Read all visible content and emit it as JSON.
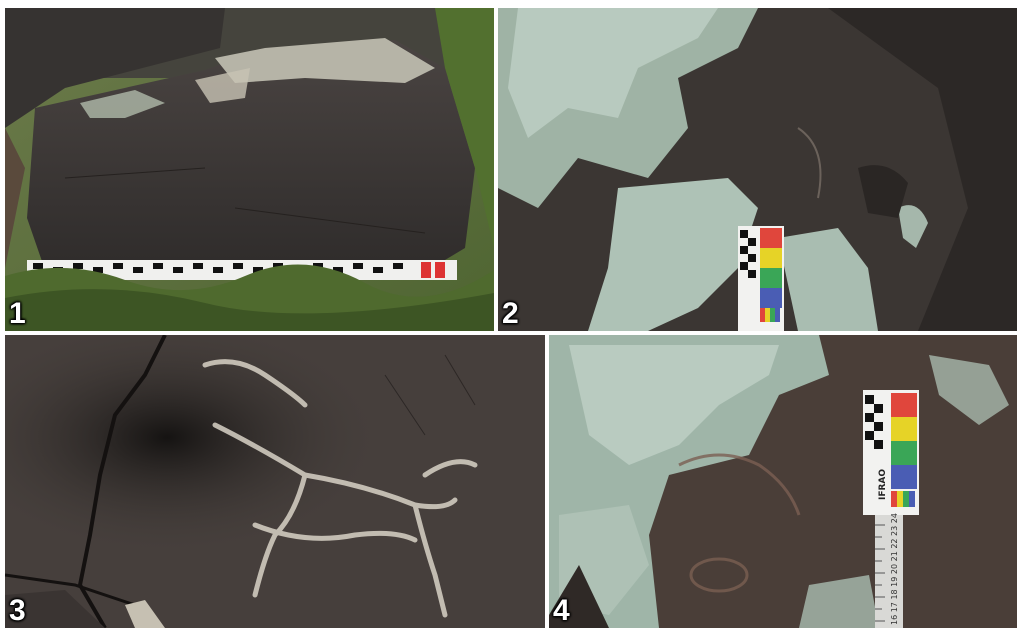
{
  "figure": {
    "panels": [
      {
        "label": "1",
        "subject": "large dark boulder with lichen on top, measuring scale bar at base, grass around"
      },
      {
        "label": "2",
        "subject": "rock surface with pale green lichen and faint engraving, color calibration card"
      },
      {
        "label": "3",
        "subject": "close-up of dark rock with pale pecked animal figure and cracks"
      },
      {
        "label": "4",
        "subject": "lichen-covered rock with faint engravings, color card and ruler"
      }
    ],
    "scale_card_text": "IFRAO",
    "ruler_numbers": "16 17 18 19 20 21 22 23 24",
    "colors": {
      "rock": "#3a3634",
      "lichen": "#b9c9bf",
      "grass": "#5e7a3a",
      "engraving": "#d8d2c6",
      "card_red": "#e0463c",
      "card_yellow": "#e6d327",
      "card_green": "#3aa657",
      "card_blue": "#4a5db4"
    }
  }
}
